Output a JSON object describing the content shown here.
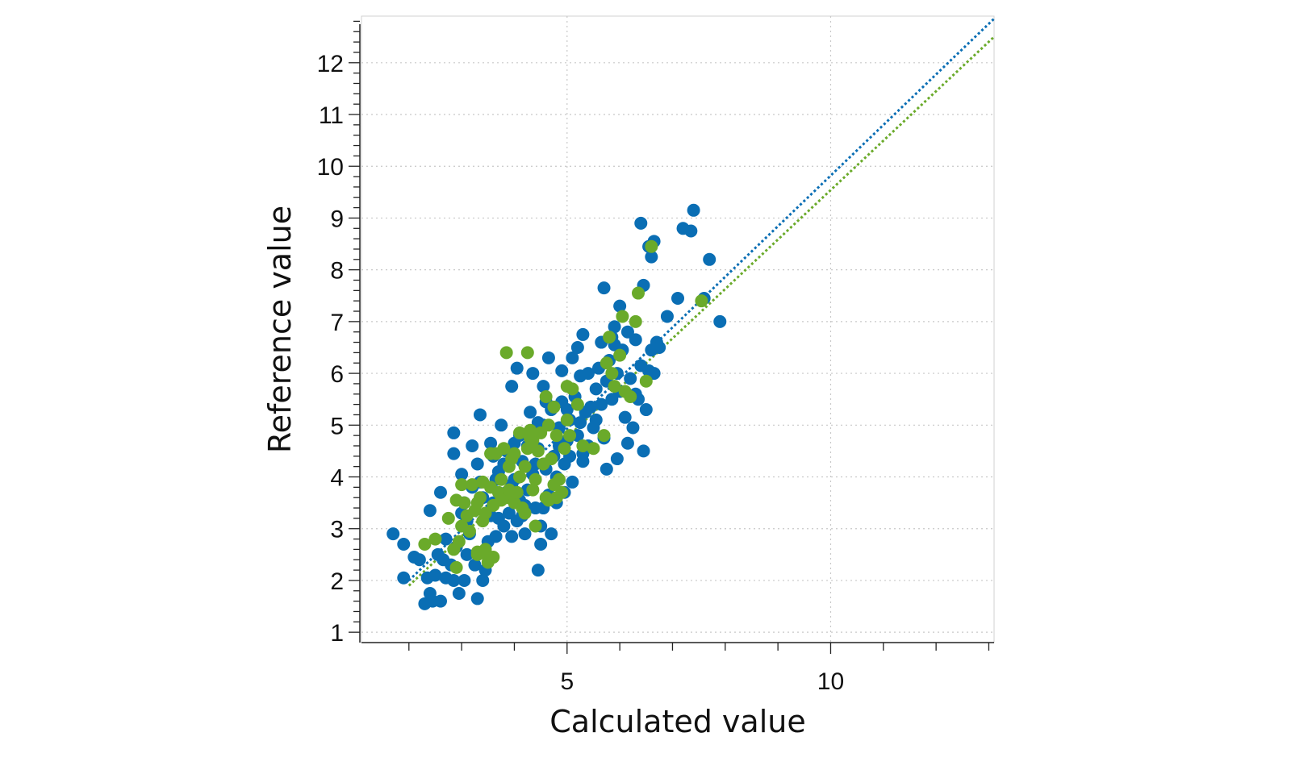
{
  "chart_data": {
    "type": "scatter",
    "title": "",
    "xlabel": "Calculated value",
    "ylabel": "Reference value",
    "xlim": [
      1.1,
      13.1
    ],
    "ylim": [
      0.8,
      12.9
    ],
    "x_ticks": [
      5,
      10
    ],
    "y_ticks": [
      1,
      2,
      3,
      4,
      5,
      6,
      7,
      8,
      9,
      10,
      11,
      12
    ],
    "grid": true,
    "legend": "none",
    "colors": {
      "blue": "#0a6eb4",
      "green": "#6aaa2a",
      "grid": "#c8c8c8",
      "axis": "#222222"
    },
    "fit_lines": [
      {
        "color": "#0a6eb4",
        "x": [
          2.0,
          13.1
        ],
        "y": [
          2.0,
          12.85
        ]
      },
      {
        "color": "#6aaa2a",
        "x": [
          2.0,
          13.1
        ],
        "y": [
          1.9,
          12.5
        ]
      }
    ],
    "series": [
      {
        "color": "#0a6eb4",
        "points": [
          [
            1.7,
            2.9
          ],
          [
            1.9,
            2.7
          ],
          [
            1.9,
            2.05
          ],
          [
            2.1,
            2.45
          ],
          [
            2.2,
            2.4
          ],
          [
            2.3,
            1.55
          ],
          [
            2.35,
            2.05
          ],
          [
            2.4,
            1.75
          ],
          [
            2.45,
            1.6
          ],
          [
            2.5,
            2.1
          ],
          [
            2.55,
            2.5
          ],
          [
            2.6,
            1.6
          ],
          [
            2.65,
            2.4
          ],
          [
            2.7,
            2.05
          ],
          [
            2.4,
            3.35
          ],
          [
            2.6,
            3.7
          ],
          [
            2.7,
            2.8
          ],
          [
            2.8,
            2.3
          ],
          [
            2.85,
            2.0
          ],
          [
            2.9,
            2.65
          ],
          [
            2.95,
            1.75
          ],
          [
            3.0,
            3.3
          ],
          [
            3.05,
            2.0
          ],
          [
            3.1,
            2.5
          ],
          [
            3.15,
            2.9
          ],
          [
            3.2,
            3.8
          ],
          [
            3.25,
            2.3
          ],
          [
            3.3,
            1.65
          ],
          [
            3.35,
            3.9
          ],
          [
            3.4,
            2.0
          ],
          [
            3.45,
            2.2
          ],
          [
            3.5,
            2.75
          ],
          [
            3.55,
            3.25
          ],
          [
            3.6,
            3.5
          ],
          [
            3.65,
            2.85
          ],
          [
            3.7,
            4.1
          ],
          [
            3.75,
            3.6
          ],
          [
            3.8,
            3.05
          ],
          [
            3.85,
            4.5
          ],
          [
            3.9,
            3.3
          ],
          [
            3.95,
            3.85
          ],
          [
            4.0,
            4.65
          ],
          [
            4.05,
            3.15
          ],
          [
            4.1,
            3.55
          ],
          [
            4.15,
            4.3
          ],
          [
            4.2,
            2.9
          ],
          [
            4.25,
            3.75
          ],
          [
            4.3,
            4.85
          ],
          [
            4.35,
            4.05
          ],
          [
            4.4,
            3.4
          ],
          [
            4.45,
            4.55
          ],
          [
            4.5,
            3.05
          ],
          [
            4.55,
            5.0
          ],
          [
            4.6,
            4.15
          ],
          [
            4.65,
            3.65
          ],
          [
            4.7,
            5.3
          ],
          [
            4.75,
            4.4
          ],
          [
            4.8,
            3.5
          ],
          [
            4.85,
            4.95
          ],
          [
            4.9,
            5.45
          ],
          [
            4.95,
            4.25
          ],
          [
            5.0,
            4.7
          ],
          [
            5.05,
            5.1
          ],
          [
            5.1,
            3.9
          ],
          [
            5.15,
            5.55
          ],
          [
            5.2,
            4.8
          ],
          [
            5.25,
            5.95
          ],
          [
            5.3,
            4.45
          ],
          [
            5.35,
            5.25
          ],
          [
            5.4,
            6.0
          ],
          [
            5.45,
            5.35
          ],
          [
            5.5,
            4.95
          ],
          [
            5.55,
            5.7
          ],
          [
            5.6,
            6.1
          ],
          [
            5.65,
            5.4
          ],
          [
            5.7,
            4.75
          ],
          [
            5.75,
            5.85
          ],
          [
            5.8,
            6.25
          ],
          [
            5.85,
            5.5
          ],
          [
            5.9,
            6.55
          ],
          [
            5.95,
            6.0
          ],
          [
            6.0,
            5.65
          ],
          [
            6.05,
            6.45
          ],
          [
            6.1,
            5.15
          ],
          [
            6.15,
            6.8
          ],
          [
            6.2,
            5.9
          ],
          [
            6.25,
            4.95
          ],
          [
            6.3,
            6.65
          ],
          [
            6.35,
            5.5
          ],
          [
            6.4,
            6.15
          ],
          [
            6.45,
            4.5
          ],
          [
            6.5,
            5.3
          ],
          [
            6.55,
            6.05
          ],
          [
            6.6,
            6.45
          ],
          [
            6.65,
            6.0
          ],
          [
            6.7,
            6.6
          ],
          [
            6.75,
            6.5
          ],
          [
            6.9,
            7.1
          ],
          [
            7.1,
            7.45
          ],
          [
            7.2,
            8.8
          ],
          [
            7.35,
            8.75
          ],
          [
            7.4,
            9.15
          ],
          [
            7.6,
            7.45
          ],
          [
            7.7,
            8.2
          ],
          [
            7.9,
            7.0
          ],
          [
            6.4,
            8.9
          ],
          [
            6.55,
            8.45
          ],
          [
            6.6,
            8.25
          ],
          [
            6.65,
            8.55
          ],
          [
            5.7,
            7.65
          ],
          [
            6.45,
            7.7
          ],
          [
            6.0,
            7.3
          ],
          [
            5.3,
            6.75
          ],
          [
            5.2,
            6.5
          ],
          [
            5.85,
            6.7
          ],
          [
            5.9,
            6.9
          ],
          [
            4.05,
            6.1
          ],
          [
            4.35,
            6.0
          ],
          [
            3.95,
            5.75
          ],
          [
            3.35,
            5.2
          ],
          [
            2.85,
            4.85
          ],
          [
            2.85,
            4.45
          ],
          [
            3.2,
            4.6
          ],
          [
            3.6,
            4.4
          ],
          [
            3.75,
            5.0
          ],
          [
            4.6,
            5.45
          ],
          [
            4.55,
            5.75
          ],
          [
            4.65,
            6.3
          ],
          [
            4.9,
            6.05
          ],
          [
            5.1,
            6.3
          ],
          [
            3.1,
            3.15
          ],
          [
            3.4,
            3.6
          ],
          [
            3.55,
            4.65
          ],
          [
            3.65,
            3.95
          ],
          [
            3.85,
            3.7
          ],
          [
            3.95,
            2.85
          ],
          [
            4.15,
            3.25
          ],
          [
            4.4,
            4.25
          ],
          [
            4.5,
            2.7
          ],
          [
            4.7,
            2.9
          ],
          [
            4.45,
            2.2
          ],
          [
            4.2,
            3.45
          ],
          [
            4.1,
            4.8
          ],
          [
            4.3,
            5.25
          ],
          [
            4.45,
            5.05
          ],
          [
            4.8,
            4.0
          ],
          [
            4.95,
            3.7
          ],
          [
            5.05,
            4.4
          ],
          [
            5.3,
            4.3
          ],
          [
            5.4,
            4.6
          ],
          [
            5.75,
            4.15
          ],
          [
            5.95,
            4.35
          ],
          [
            5.55,
            5.1
          ],
          [
            5.65,
            6.6
          ],
          [
            6.15,
            4.65
          ],
          [
            6.3,
            5.6
          ],
          [
            3.0,
            4.05
          ],
          [
            3.05,
            3.5
          ],
          [
            3.3,
            4.25
          ],
          [
            3.45,
            2.55
          ],
          [
            3.7,
            3.2
          ],
          [
            3.8,
            4.25
          ],
          [
            4.0,
            3.95
          ],
          [
            4.25,
            4.6
          ],
          [
            4.55,
            3.4
          ],
          [
            4.85,
            4.6
          ],
          [
            5.0,
            5.3
          ],
          [
            5.25,
            5.05
          ]
        ]
      },
      {
        "color": "#6aaa2a",
        "points": [
          [
            2.3,
            2.7
          ],
          [
            2.5,
            2.8
          ],
          [
            2.75,
            3.2
          ],
          [
            2.85,
            2.6
          ],
          [
            2.9,
            2.25
          ],
          [
            2.95,
            2.75
          ],
          [
            3.0,
            3.05
          ],
          [
            3.05,
            3.5
          ],
          [
            3.1,
            3.25
          ],
          [
            3.15,
            2.95
          ],
          [
            3.2,
            3.85
          ],
          [
            3.25,
            3.35
          ],
          [
            3.3,
            2.5
          ],
          [
            3.35,
            3.6
          ],
          [
            3.4,
            3.15
          ],
          [
            3.45,
            2.6
          ],
          [
            3.5,
            2.35
          ],
          [
            3.55,
            3.8
          ],
          [
            3.6,
            3.45
          ],
          [
            3.65,
            4.45
          ],
          [
            3.7,
            3.7
          ],
          [
            3.75,
            3.95
          ],
          [
            3.8,
            4.55
          ],
          [
            3.85,
            3.6
          ],
          [
            3.9,
            4.2
          ],
          [
            3.95,
            4.35
          ],
          [
            4.0,
            3.5
          ],
          [
            4.05,
            3.7
          ],
          [
            4.1,
            4.0
          ],
          [
            4.15,
            3.4
          ],
          [
            4.2,
            4.2
          ],
          [
            4.25,
            4.55
          ],
          [
            4.3,
            4.75
          ],
          [
            4.35,
            3.75
          ],
          [
            4.4,
            3.95
          ],
          [
            4.45,
            4.5
          ],
          [
            4.5,
            4.85
          ],
          [
            4.55,
            4.25
          ],
          [
            4.6,
            5.55
          ],
          [
            4.65,
            3.55
          ],
          [
            4.7,
            4.35
          ],
          [
            4.75,
            3.85
          ],
          [
            4.8,
            4.8
          ],
          [
            4.85,
            3.95
          ],
          [
            4.9,
            3.7
          ],
          [
            4.95,
            4.55
          ],
          [
            5.0,
            5.1
          ],
          [
            5.05,
            4.8
          ],
          [
            5.1,
            5.7
          ],
          [
            5.2,
            5.4
          ],
          [
            5.3,
            4.6
          ],
          [
            5.5,
            4.55
          ],
          [
            5.7,
            4.8
          ],
          [
            5.75,
            6.2
          ],
          [
            5.8,
            6.7
          ],
          [
            5.85,
            6.0
          ],
          [
            5.9,
            5.75
          ],
          [
            6.0,
            6.35
          ],
          [
            6.05,
            7.1
          ],
          [
            6.1,
            5.65
          ],
          [
            6.2,
            5.55
          ],
          [
            6.3,
            7.0
          ],
          [
            6.35,
            7.55
          ],
          [
            6.5,
            5.85
          ],
          [
            6.6,
            8.45
          ],
          [
            7.55,
            7.4
          ],
          [
            3.85,
            6.4
          ],
          [
            4.25,
            6.4
          ],
          [
            4.35,
            4.7
          ],
          [
            3.5,
            2.45
          ],
          [
            3.6,
            2.45
          ],
          [
            3.3,
            2.55
          ],
          [
            2.9,
            3.55
          ],
          [
            3.0,
            3.85
          ],
          [
            3.4,
            3.9
          ],
          [
            3.55,
            4.45
          ],
          [
            4.1,
            4.85
          ],
          [
            4.65,
            5.0
          ],
          [
            4.75,
            5.35
          ],
          [
            5.0,
            5.75
          ],
          [
            3.3,
            3.5
          ],
          [
            3.45,
            3.3
          ],
          [
            3.75,
            3.55
          ],
          [
            4.0,
            4.45
          ],
          [
            4.2,
            3.3
          ],
          [
            4.4,
            3.05
          ],
          [
            4.6,
            3.6
          ],
          [
            4.8,
            3.6
          ],
          [
            4.3,
            4.9
          ],
          [
            3.9,
            3.75
          ]
        ]
      }
    ]
  }
}
